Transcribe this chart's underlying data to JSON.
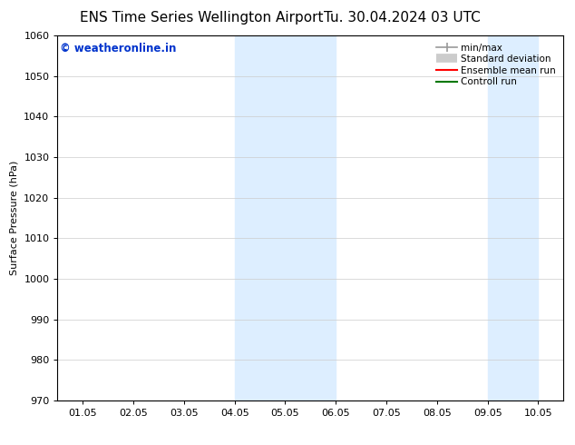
{
  "title_left": "ENS Time Series Wellington Airport",
  "title_right": "Tu. 30.04.2024 03 UTC",
  "ylabel": "Surface Pressure (hPa)",
  "ylim": [
    970,
    1060
  ],
  "yticks": [
    970,
    980,
    990,
    1000,
    1010,
    1020,
    1030,
    1040,
    1050,
    1060
  ],
  "xtick_labels": [
    "01.05",
    "02.05",
    "03.05",
    "04.05",
    "05.05",
    "06.05",
    "07.05",
    "08.05",
    "09.05",
    "10.05"
  ],
  "xtick_positions": [
    0,
    1,
    2,
    3,
    4,
    5,
    6,
    7,
    8,
    9
  ],
  "xlim": [
    -0.5,
    9.5
  ],
  "shaded_regions": [
    {
      "x_start": 3.0,
      "x_end": 5.0,
      "color": "#ddeeff"
    },
    {
      "x_start": 8.0,
      "x_end": 9.0,
      "color": "#ddeeff"
    }
  ],
  "watermark_text": "© weatheronline.in",
  "watermark_color": "#0033cc",
  "bg_color": "#ffffff",
  "grid_color": "#cccccc",
  "font_family": "DejaVu Sans",
  "title_fontsize": 11,
  "axis_fontsize": 8,
  "tick_fontsize": 8,
  "legend_fontsize": 7.5,
  "legend_items": [
    {
      "label": "min/max",
      "color": "#aaaaaa"
    },
    {
      "label": "Standard deviation",
      "color": "#cccccc"
    },
    {
      "label": "Ensemble mean run",
      "color": "#ff0000"
    },
    {
      "label": "Controll run",
      "color": "#007700"
    }
  ]
}
